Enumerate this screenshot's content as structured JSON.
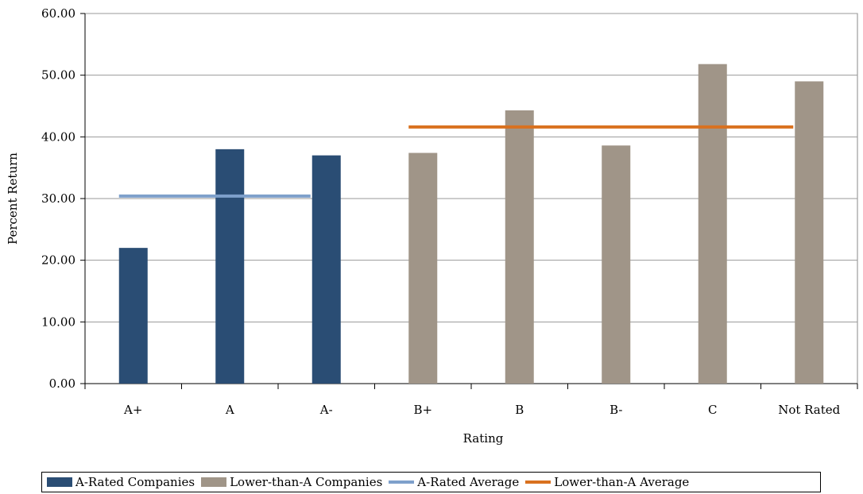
{
  "chart_data": {
    "type": "bar",
    "categories": [
      "A+",
      "A",
      "A-",
      "B+",
      "B",
      "B-",
      "C",
      "Not Rated"
    ],
    "series": [
      {
        "name": "A-Rated Companies",
        "color": "#2a4d74",
        "type": "bar",
        "values": [
          22.0,
          38.0,
          37.0,
          null,
          null,
          null,
          null,
          null
        ]
      },
      {
        "name": "Lower-than-A Companies",
        "color": "#a09588",
        "type": "bar",
        "values": [
          null,
          null,
          null,
          37.4,
          44.3,
          38.6,
          51.8,
          49.0
        ]
      },
      {
        "name": "A-Rated Average",
        "color": "#7ea0cb",
        "type": "line",
        "from": "A+",
        "to": "A-",
        "value": 30.4
      },
      {
        "name": "Lower-than-A Average",
        "color": "#d9711f",
        "type": "line",
        "from": "B+",
        "to": "Not Rated",
        "value": 41.6
      }
    ],
    "xlabel": "Rating",
    "ylabel": "Percent Return",
    "ylim": [
      0,
      60
    ],
    "yticks": [
      "0.00",
      "10.00",
      "20.00",
      "30.00",
      "40.00",
      "50.00",
      "60.00"
    ],
    "grid": true,
    "legend_position": "bottom"
  }
}
